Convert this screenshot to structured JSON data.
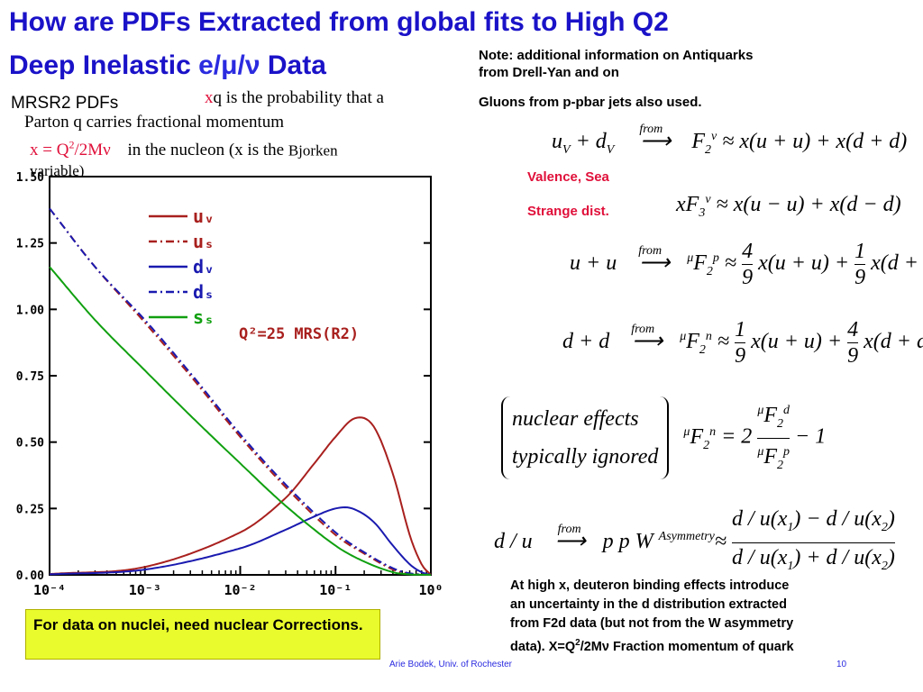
{
  "slide": {
    "title_line1": "How are PDFs Extracted from global fits to High Q2",
    "title_line2_prefix": "Deep Inelastic",
    "title_line2_symbols": "e/μ/ν",
    "title_line2_suffix": "Data",
    "subtitle": "MRSR2 PDFs",
    "note_line1": "Note: additional information on Antiquarks",
    "note_line2": "from Drell-Yan and on",
    "note_line3": "Gluons from  p-pbar jets also used.",
    "xq_prefix": "x",
    "xq_text": "q is the probability that a",
    "parton_text": "Parton q carries  fractional   momentum",
    "x_def": "x = Q",
    "x_def_exp": "2",
    "x_def_rest": "/2Mν",
    "x_def_text": "in the nucleon (x is the",
    "bjorken": "Bjorken",
    "variable": "variable)",
    "valence_sea": "Valence, Sea",
    "strange": "Strange dist.",
    "nuclei_box": "For data on nuclei, need nuclear Corrections.",
    "high_x_line1": "At high x, deuteron binding effects introduce",
    "high_x_line2": "an uncertainty in the d distribution extracted",
    "high_x_line3": "from F2d data (but not from the W asymmetry",
    "high_x_line4": "data).  X=Q",
    "high_x_line4_exp": "2",
    "high_x_line4_rest": "/2Mν  Fraction momentum of quark",
    "footer_author": "Arie Bodek,  Univ. of Rochester",
    "page_number": "10"
  },
  "equations": {
    "from_label": "from",
    "eq1_lhs": "u",
    "eq1_lhs2": "d",
    "eq1_rhs": "≈ x(u + u) + x(d + d)",
    "eq2_lhs": "xF",
    "eq2_rhs": "≈ x(u − u) + x(d − d)",
    "eq3_lhs": "u + u",
    "eq3_rhs_a": "x(u + u) +",
    "eq3_rhs_b": "x(d + d)",
    "eq3_frac1_num": "4",
    "eq3_frac1_den": "9",
    "eq3_frac2_num": "1",
    "eq3_frac2_den": "9",
    "eq4_lhs": "d + d",
    "eq4_rhs_a": "x(u + u) +",
    "eq4_rhs_b": "x(d + d)",
    "eq4_frac1_num": "1",
    "eq4_frac1_den": "9",
    "eq4_frac2_num": "4",
    "eq4_frac2_den": "9",
    "nuclear_effects": "nuclear effects",
    "typically_ignored": "typically  ignored",
    "eq5_rhs": "= 2",
    "eq5_tail": "− 1",
    "eq6_lhs": "d / u",
    "eq6_mid": "p p W",
    "asymmetry": "Asymmetry",
    "eq6_num": "d / u(x",
    "eq6_num_b": ") − d / u(x",
    "eq6_den": "d / u(x",
    "eq6_den_b": ") + d / u(x"
  },
  "chart_data": {
    "type": "line",
    "title": "",
    "annotation": "Q²=25 MRS(R2)",
    "xlabel": "",
    "ylabel": "",
    "xscale": "log",
    "xlim": [
      0.0001,
      1
    ],
    "ylim": [
      0,
      1.5
    ],
    "x_tick_labels": [
      "10⁻⁴",
      "10⁻³",
      "10⁻²",
      "10⁻¹",
      "10⁰"
    ],
    "y_tick_labels": [
      "0.00",
      "0.25",
      "0.50",
      "0.75",
      "1.00",
      "1.25",
      "1.50"
    ],
    "y_ticks": [
      0,
      0.25,
      0.5,
      0.75,
      1.0,
      1.25,
      1.5
    ],
    "legend_position": "top-center",
    "series": [
      {
        "name": "uᵥ",
        "style": "solid",
        "color": "#a8201e",
        "x": [
          0.0001,
          0.001,
          0.01,
          0.03,
          0.06,
          0.1,
          0.16,
          0.25,
          0.4,
          0.6,
          0.8,
          1.0
        ],
        "y": [
          0.003,
          0.03,
          0.16,
          0.29,
          0.42,
          0.52,
          0.59,
          0.56,
          0.38,
          0.15,
          0.04,
          0.0
        ]
      },
      {
        "name": "uₛ",
        "style": "dashdot",
        "color": "#a8201e",
        "x": [
          0.0001,
          0.0003,
          0.001,
          0.003,
          0.01,
          0.03,
          0.1,
          0.2,
          0.4,
          0.6,
          1.0
        ],
        "y": [
          1.38,
          1.16,
          0.95,
          0.75,
          0.52,
          0.33,
          0.15,
          0.08,
          0.02,
          0.005,
          0.0
        ]
      },
      {
        "name": "dᵥ",
        "style": "solid",
        "color": "#1a1ab0",
        "x": [
          0.0001,
          0.001,
          0.01,
          0.03,
          0.06,
          0.1,
          0.15,
          0.25,
          0.4,
          0.6,
          0.8,
          1.0
        ],
        "y": [
          0.002,
          0.02,
          0.1,
          0.17,
          0.22,
          0.25,
          0.25,
          0.2,
          0.11,
          0.04,
          0.01,
          0.0
        ]
      },
      {
        "name": "dₛ",
        "style": "dashdot",
        "color": "#1a1ab0",
        "x": [
          0.0001,
          0.0003,
          0.001,
          0.003,
          0.01,
          0.03,
          0.1,
          0.2,
          0.4,
          0.6,
          1.0
        ],
        "y": [
          1.38,
          1.16,
          0.96,
          0.76,
          0.53,
          0.34,
          0.16,
          0.085,
          0.025,
          0.006,
          0.0
        ]
      },
      {
        "name": "sₛ",
        "style": "solid",
        "color": "#10a010",
        "x": [
          0.0001,
          0.0003,
          0.001,
          0.003,
          0.01,
          0.03,
          0.1,
          0.2,
          0.4,
          0.6,
          1.0
        ],
        "y": [
          1.16,
          0.96,
          0.77,
          0.6,
          0.42,
          0.26,
          0.11,
          0.05,
          0.01,
          0.002,
          0.0
        ]
      }
    ]
  }
}
